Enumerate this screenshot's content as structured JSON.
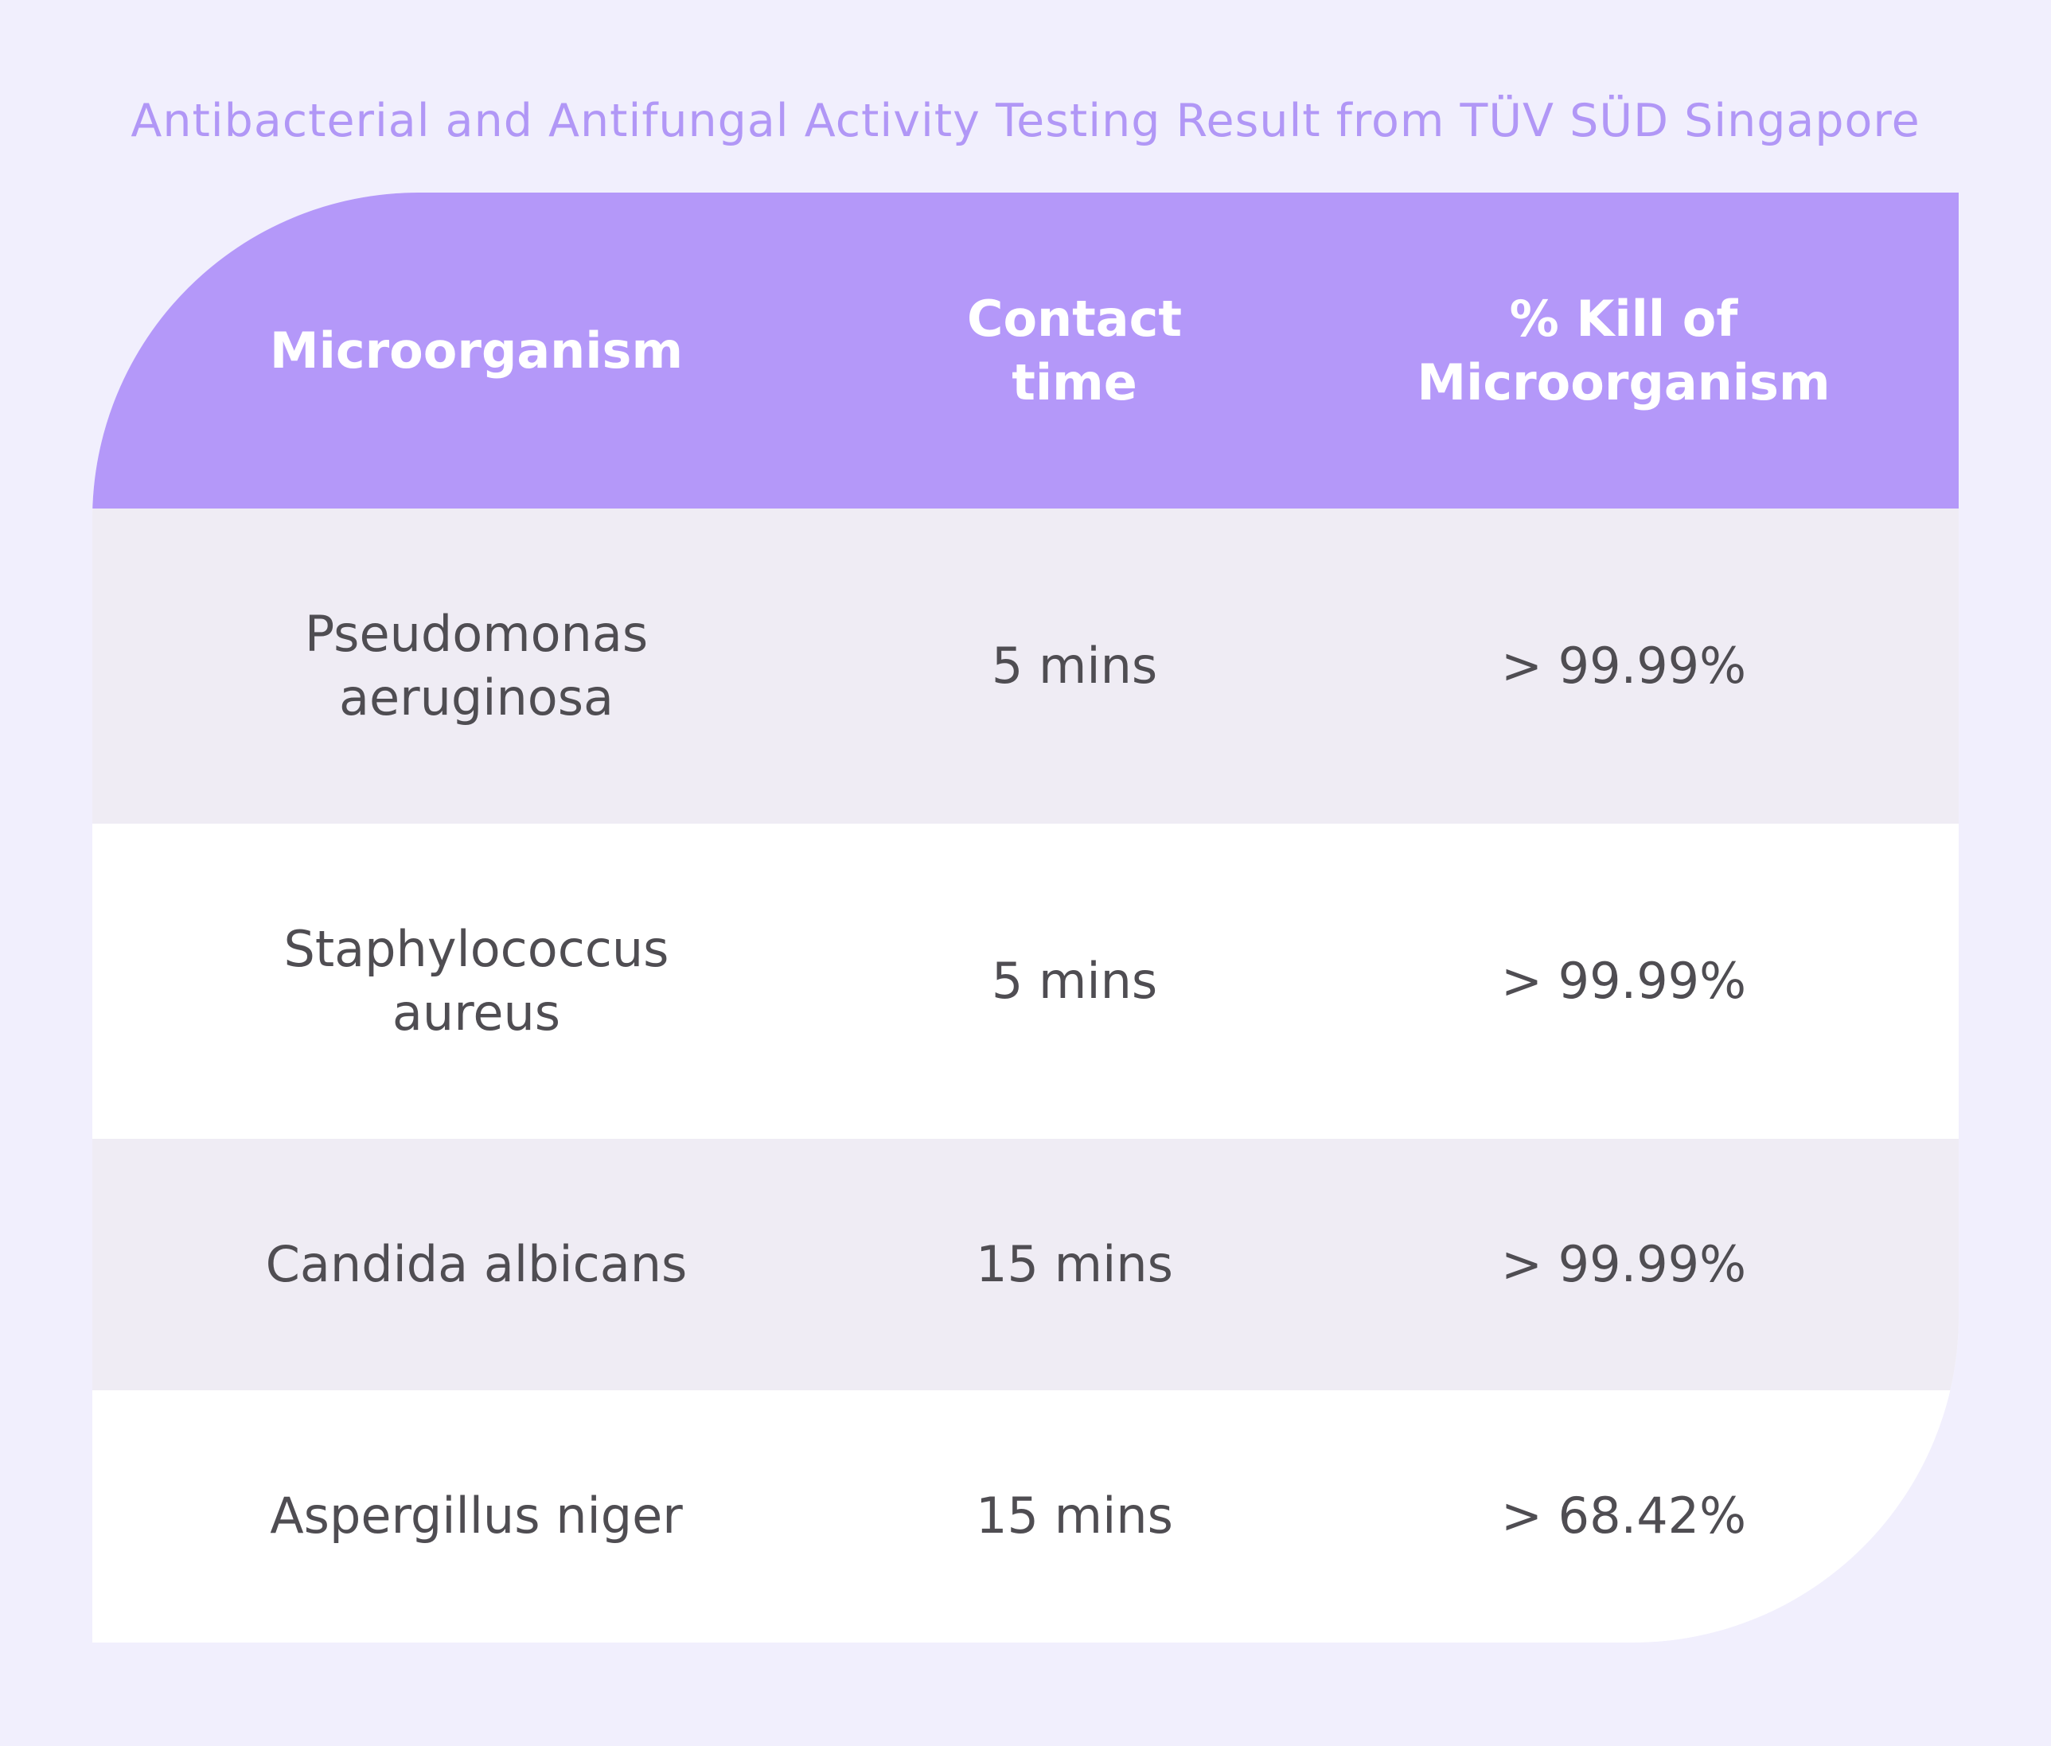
{
  "title": "Antibacterial and Antifungal Activity Testing Result from TÜV SÜD Singapore",
  "colors": {
    "background": "#f1effd",
    "title": "#b197f6",
    "header_fill": "#b498f9",
    "row_shaded": "#efecf4",
    "row_white": "#ffffff",
    "body_text": "#4f4d52"
  },
  "table": {
    "headers": [
      "Microorganism",
      "Contact\ntime",
      "% Kill of\nMicroorganism"
    ],
    "rows": [
      {
        "microorganism": "Pseudomonas\naeruginosa",
        "contact_time": "5 mins",
        "kill": "> 99.99%"
      },
      {
        "microorganism": "Staphylococcus\naureus",
        "contact_time": "5 mins",
        "kill": "> 99.99%"
      },
      {
        "microorganism": "Candida albicans",
        "contact_time": "15 mins",
        "kill": "> 99.99%"
      },
      {
        "microorganism": "Aspergillus niger",
        "contact_time": "15 mins",
        "kill": "> 68.42%"
      }
    ]
  }
}
